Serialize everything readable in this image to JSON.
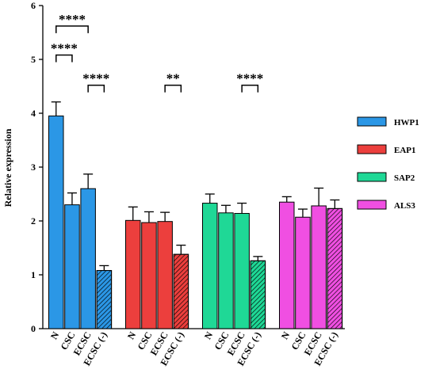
{
  "chart_data": {
    "type": "bar",
    "ylabel": "Relative expression",
    "ylim": [
      0,
      6
    ],
    "yticks": [
      "0",
      "1",
      "2",
      "3",
      "4",
      "5",
      "6"
    ],
    "categories": [
      "N",
      "CSC",
      "ECSC",
      "ECSC (-)"
    ],
    "series": [
      {
        "name": "HWP1",
        "color": "#2b97e6",
        "values": [
          3.95,
          2.3,
          2.6,
          1.08
        ],
        "errors": [
          0.26,
          0.22,
          0.27,
          0.09
        ]
      },
      {
        "name": "EAP1",
        "color": "#ec3f3d",
        "values": [
          2.01,
          1.97,
          1.99,
          1.38
        ],
        "errors": [
          0.25,
          0.2,
          0.17,
          0.17
        ]
      },
      {
        "name": "SAP2",
        "color": "#1fd896",
        "values": [
          2.33,
          2.15,
          2.14,
          1.26
        ],
        "errors": [
          0.17,
          0.14,
          0.19,
          0.08
        ]
      },
      {
        "name": "ALS3",
        "color": "#f04fe2",
        "values": [
          2.35,
          2.07,
          2.28,
          2.23
        ],
        "errors": [
          0.1,
          0.15,
          0.33,
          0.16
        ]
      }
    ],
    "hatched_category": "ECSC (-)",
    "significance": [
      {
        "series": 0,
        "from": 0,
        "to": 2,
        "label": "****",
        "y": 5.62
      },
      {
        "series": 0,
        "from": 0,
        "to": 1,
        "label": "****",
        "y": 5.08
      },
      {
        "series": 0,
        "from": 2,
        "to": 3,
        "label": "****",
        "y": 4.52
      },
      {
        "series": 1,
        "from": 2,
        "to": 3,
        "label": "**",
        "y": 4.52
      },
      {
        "series": 2,
        "from": 2,
        "to": 3,
        "label": "****",
        "y": 4.52
      }
    ],
    "legend_position": "right"
  }
}
